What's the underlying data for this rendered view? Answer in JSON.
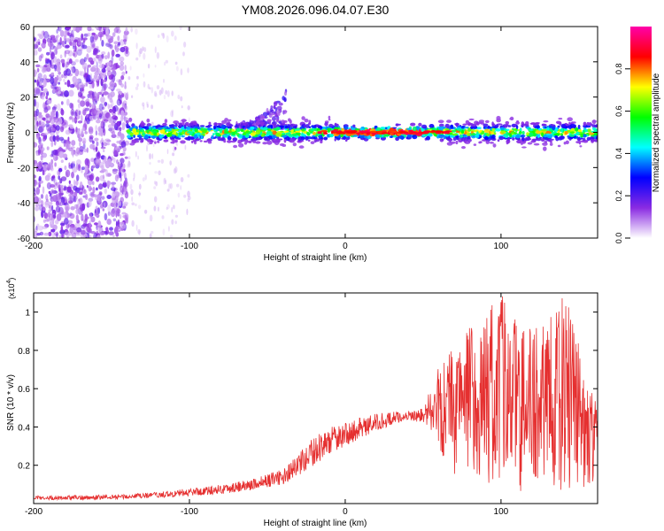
{
  "chart_data": [
    {
      "type": "heatmap",
      "title": "YM08.2026.096.04.07.E30",
      "xlabel": "Height of straight line (km)",
      "ylabel": "Frequency (Hz)",
      "xlim": [
        -200,
        162
      ],
      "ylim": [
        -60,
        60
      ],
      "xticks": [
        -200,
        -100,
        0,
        100
      ],
      "yticks": [
        -60,
        -40,
        -20,
        0,
        20,
        40,
        60
      ],
      "colorbar": {
        "label": "Normalized spectral amplitude",
        "range": [
          0,
          1
        ],
        "ticks": [
          "0.0",
          "0.2",
          "0.4",
          "0.6",
          "0.8"
        ],
        "colors": [
          "#ffffff",
          "#8a2be2",
          "#0000ff",
          "#00ffff",
          "#00ff00",
          "#ffff00",
          "#ff0000",
          "#ff00aa"
        ]
      },
      "features": [
        {
          "description": "broadband noise",
          "x_range": [
            -200,
            -140
          ],
          "freq_range": [
            -60,
            60
          ]
        },
        {
          "description": "narrow band",
          "x_range": [
            -140,
            162
          ],
          "center_freq": 0,
          "half_width_hz": 5
        },
        {
          "description": "bump",
          "x_range": [
            -70,
            -38
          ],
          "max_freq": 22
        }
      ]
    },
    {
      "type": "line",
      "xlabel": "Height of straight line (km)",
      "ylabel": "SNR (10 * v/v)",
      "y_exponent": "(x10",
      "y_exponent_power": "4",
      "y_exponent_close": ")",
      "xlim": [
        -200,
        162
      ],
      "ylim": [
        0,
        1.1
      ],
      "xticks": [
        -200,
        -100,
        0,
        100
      ],
      "yticks": [
        0.2,
        0.4,
        0.6,
        0.8,
        1
      ],
      "color": "#e53030",
      "envelope": {
        "x": [
          -200,
          -160,
          -140,
          -120,
          -100,
          -80,
          -60,
          -40,
          -30,
          -20,
          -10,
          0,
          10,
          20,
          30,
          40,
          50,
          55,
          60,
          70,
          80,
          90,
          100,
          110,
          120,
          130,
          140,
          150,
          162
        ],
        "baseline": [
          0.02,
          0.02,
          0.025,
          0.03,
          0.04,
          0.05,
          0.07,
          0.1,
          0.14,
          0.2,
          0.26,
          0.3,
          0.34,
          0.38,
          0.41,
          0.44,
          0.42,
          0.35,
          0.25,
          0.15,
          0.08,
          0.05,
          0.05,
          0.05,
          0.05,
          0.06,
          0.06,
          0.08,
          0.1
        ],
        "peak": [
          0.04,
          0.045,
          0.05,
          0.06,
          0.08,
          0.1,
          0.13,
          0.18,
          0.26,
          0.35,
          0.4,
          0.42,
          0.45,
          0.47,
          0.48,
          0.48,
          0.5,
          0.6,
          0.72,
          0.82,
          0.9,
          0.98,
          1.08,
          0.95,
          0.9,
          0.95,
          1.08,
          0.85,
          0.5
        ]
      }
    }
  ]
}
